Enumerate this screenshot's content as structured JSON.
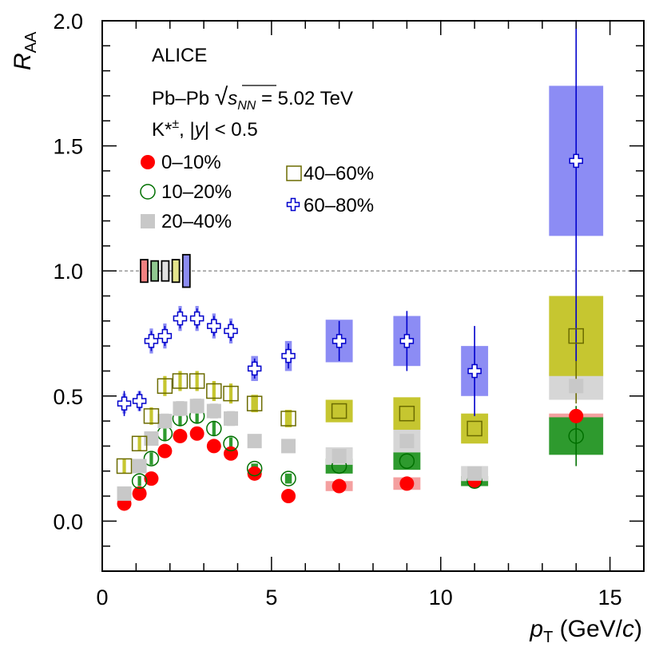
{
  "chart_data": {
    "type": "scatter",
    "title": "",
    "xlabel": "p_T (GeV/c)",
    "ylabel": "R_AA",
    "xlabel_parts": {
      "var": "p",
      "sub": "T",
      "unit_open": " (GeV/",
      "unit_var": "c",
      "unit_close": ")"
    },
    "ylabel_parts": {
      "var": "R",
      "sub": "AA"
    },
    "xlim": [
      0,
      16
    ],
    "ylim": [
      -0.2,
      2.0
    ],
    "x_ticks": [
      0,
      5,
      10,
      15
    ],
    "x_tick_labels": [
      "0",
      "5",
      "10",
      "15"
    ],
    "y_ticks": [
      0.0,
      0.5,
      1.0,
      1.5,
      2.0
    ],
    "y_tick_labels": [
      "0.0",
      "0.5",
      "1.0",
      "1.5",
      "2.0"
    ],
    "reference_line": 1.0,
    "annotations": {
      "experiment": "ALICE",
      "system_prefix": "Pb–Pb ",
      "sqrt_symbol": "√",
      "energy_var": "s",
      "energy_sub": "NN",
      "energy_value": " = 5.02 TeV",
      "particle_base": "K*",
      "particle_sup": "±",
      "rapidity_pre": ", |",
      "rapidity_var": "y",
      "rapidity_post": "| < 0.5"
    },
    "norm_boxes": [
      {
        "series": "0–10%",
        "low": 0.955,
        "high": 1.045,
        "color": "#f08080"
      },
      {
        "series": "10–20%",
        "low": 0.96,
        "high": 1.04,
        "color": "#90c890"
      },
      {
        "series": "20–40%",
        "low": 0.96,
        "high": 1.04,
        "color": "#e0e0e0"
      },
      {
        "series": "40–60%",
        "low": 0.955,
        "high": 1.045,
        "color": "#e4e48c"
      },
      {
        "series": "60–80%",
        "low": 0.935,
        "high": 1.065,
        "color": "#8c8cf0"
      }
    ],
    "series": [
      {
        "name": "0–10%",
        "marker": "filled-circle",
        "color": "#ff0000",
        "syst_color": "#f4a0a0",
        "points": [
          {
            "x": 0.65,
            "y": 0.07,
            "syst": 0.01,
            "syst_hw": 0.12
          },
          {
            "x": 1.1,
            "y": 0.11,
            "syst": 0.01,
            "syst_hw": 0.12
          },
          {
            "x": 1.45,
            "y": 0.17,
            "syst": 0.015,
            "syst_hw": 0.12
          },
          {
            "x": 1.85,
            "y": 0.28,
            "syst": 0.02,
            "syst_hw": 0.12
          },
          {
            "x": 2.3,
            "y": 0.34,
            "syst": 0.02,
            "syst_hw": 0.12
          },
          {
            "x": 2.8,
            "y": 0.35,
            "syst": 0.02,
            "syst_hw": 0.12
          },
          {
            "x": 3.3,
            "y": 0.3,
            "syst": 0.02,
            "syst_hw": 0.12
          },
          {
            "x": 3.8,
            "y": 0.27,
            "syst": 0.02,
            "syst_hw": 0.12
          },
          {
            "x": 4.5,
            "y": 0.19,
            "syst": 0.015,
            "syst_hw": 0.2
          },
          {
            "x": 5.5,
            "y": 0.1,
            "syst": 0.012,
            "syst_hw": 0.2
          },
          {
            "x": 7.0,
            "y": 0.14,
            "syst": 0.02,
            "syst_hw": 0.4
          },
          {
            "x": 9.0,
            "y": 0.15,
            "syst": 0.025,
            "syst_hw": 0.4
          },
          {
            "x": 11.0,
            "y": 0.16,
            "syst": 0.02,
            "syst_hw": 0.4
          },
          {
            "x": 14.0,
            "y": 0.42,
            "syst": 0.01,
            "syst_hw": 0.8
          }
        ]
      },
      {
        "name": "10–20%",
        "marker": "open-circle",
        "color": "#007000",
        "syst_color": "#2e9a2e",
        "points": [
          {
            "x": 1.1,
            "y": 0.16,
            "syst": 0.02,
            "syst_hw": 0.05
          },
          {
            "x": 1.45,
            "y": 0.25,
            "syst": 0.025,
            "syst_hw": 0.05
          },
          {
            "x": 1.85,
            "y": 0.35,
            "syst": 0.03,
            "syst_hw": 0.05
          },
          {
            "x": 2.3,
            "y": 0.41,
            "syst": 0.03,
            "syst_hw": 0.05
          },
          {
            "x": 2.8,
            "y": 0.42,
            "syst": 0.03,
            "syst_hw": 0.05
          },
          {
            "x": 3.3,
            "y": 0.37,
            "syst": 0.03,
            "syst_hw": 0.05
          },
          {
            "x": 3.8,
            "y": 0.31,
            "syst": 0.025,
            "syst_hw": 0.05
          },
          {
            "x": 4.5,
            "y": 0.21,
            "syst": 0.02,
            "syst_hw": 0.1
          },
          {
            "x": 5.5,
            "y": 0.17,
            "syst": 0.02,
            "syst_hw": 0.1
          },
          {
            "x": 7.0,
            "y": 0.22,
            "syst": 0.03,
            "syst_hw": 0.4
          },
          {
            "x": 9.0,
            "y": 0.24,
            "syst": 0.035,
            "syst_hw": 0.4
          },
          {
            "x": 11.0,
            "y": 0.16,
            "syst": 0.02,
            "syst_hw": 0.4
          },
          {
            "x": 14.0,
            "y": 0.34,
            "syst": 0.075,
            "syst_hw": 0.8,
            "stat": 0.12
          }
        ]
      },
      {
        "name": "20–40%",
        "marker": "filled-square",
        "color": "#c8c8c8",
        "syst_color": "#d6d6d6",
        "points": [
          {
            "x": 0.65,
            "y": 0.11,
            "syst": 0.015,
            "syst_hw": 0.12
          },
          {
            "x": 1.1,
            "y": 0.22,
            "syst": 0.02,
            "syst_hw": 0.12
          },
          {
            "x": 1.45,
            "y": 0.33,
            "syst": 0.025,
            "syst_hw": 0.12
          },
          {
            "x": 1.85,
            "y": 0.4,
            "syst": 0.03,
            "syst_hw": 0.12
          },
          {
            "x": 2.3,
            "y": 0.45,
            "syst": 0.03,
            "syst_hw": 0.12
          },
          {
            "x": 2.8,
            "y": 0.46,
            "syst": 0.03,
            "syst_hw": 0.12
          },
          {
            "x": 3.3,
            "y": 0.44,
            "syst": 0.03,
            "syst_hw": 0.12
          },
          {
            "x": 3.8,
            "y": 0.41,
            "syst": 0.03,
            "syst_hw": 0.12
          },
          {
            "x": 4.5,
            "y": 0.32,
            "syst": 0.025,
            "syst_hw": 0.2
          },
          {
            "x": 5.5,
            "y": 0.3,
            "syst": 0.025,
            "syst_hw": 0.2
          },
          {
            "x": 7.0,
            "y": 0.26,
            "syst": 0.035,
            "syst_hw": 0.4
          },
          {
            "x": 9.0,
            "y": 0.32,
            "syst": 0.045,
            "syst_hw": 0.4
          },
          {
            "x": 11.0,
            "y": 0.19,
            "syst": 0.03,
            "syst_hw": 0.4
          },
          {
            "x": 14.0,
            "y": 0.54,
            "syst": 0.055,
            "syst_hw": 0.8
          }
        ]
      },
      {
        "name": "40–60%",
        "marker": "open-square",
        "color": "#6b6b00",
        "syst_color": "#c6c630",
        "points": [
          {
            "x": 0.65,
            "y": 0.22,
            "syst": 0.03,
            "syst_hw": 0.05
          },
          {
            "x": 1.1,
            "y": 0.31,
            "syst": 0.03,
            "syst_hw": 0.05
          },
          {
            "x": 1.45,
            "y": 0.42,
            "syst": 0.035,
            "syst_hw": 0.05
          },
          {
            "x": 1.85,
            "y": 0.54,
            "syst": 0.04,
            "syst_hw": 0.05
          },
          {
            "x": 2.3,
            "y": 0.56,
            "syst": 0.04,
            "syst_hw": 0.05
          },
          {
            "x": 2.8,
            "y": 0.56,
            "syst": 0.04,
            "syst_hw": 0.05
          },
          {
            "x": 3.3,
            "y": 0.52,
            "syst": 0.04,
            "syst_hw": 0.05
          },
          {
            "x": 3.8,
            "y": 0.51,
            "syst": 0.04,
            "syst_hw": 0.05
          },
          {
            "x": 4.5,
            "y": 0.47,
            "syst": 0.035,
            "syst_hw": 0.1
          },
          {
            "x": 5.5,
            "y": 0.41,
            "syst": 0.035,
            "syst_hw": 0.1
          },
          {
            "x": 7.0,
            "y": 0.44,
            "syst": 0.045,
            "syst_hw": 0.4
          },
          {
            "x": 9.0,
            "y": 0.43,
            "syst": 0.065,
            "syst_hw": 0.4
          },
          {
            "x": 11.0,
            "y": 0.37,
            "syst": 0.06,
            "syst_hw": 0.4
          },
          {
            "x": 14.0,
            "y": 0.74,
            "syst": 0.16,
            "syst_hw": 0.8,
            "stat": 0.27
          }
        ]
      },
      {
        "name": "60–80%",
        "marker": "open-cross",
        "color": "#0000cc",
        "syst_color": "#8c8cf4",
        "points": [
          {
            "x": 0.65,
            "y": 0.47,
            "syst": 0.04,
            "syst_hw": 0.05,
            "stat": 0.05
          },
          {
            "x": 1.1,
            "y": 0.48,
            "syst": 0.04,
            "syst_hw": 0.05,
            "stat": 0.04
          },
          {
            "x": 1.45,
            "y": 0.72,
            "syst": 0.05,
            "syst_hw": 0.05,
            "stat": 0.04
          },
          {
            "x": 1.85,
            "y": 0.74,
            "syst": 0.05,
            "syst_hw": 0.05,
            "stat": 0.04
          },
          {
            "x": 2.3,
            "y": 0.81,
            "syst": 0.05,
            "syst_hw": 0.05,
            "stat": 0.04
          },
          {
            "x": 2.8,
            "y": 0.81,
            "syst": 0.05,
            "syst_hw": 0.05,
            "stat": 0.04
          },
          {
            "x": 3.3,
            "y": 0.78,
            "syst": 0.05,
            "syst_hw": 0.05,
            "stat": 0.04
          },
          {
            "x": 3.8,
            "y": 0.76,
            "syst": 0.05,
            "syst_hw": 0.05,
            "stat": 0.04
          },
          {
            "x": 4.5,
            "y": 0.61,
            "syst": 0.05,
            "syst_hw": 0.1,
            "stat": 0.04
          },
          {
            "x": 5.5,
            "y": 0.66,
            "syst": 0.06,
            "syst_hw": 0.1,
            "stat": 0.05
          },
          {
            "x": 7.0,
            "y": 0.72,
            "syst": 0.085,
            "syst_hw": 0.4,
            "stat": 0.08
          },
          {
            "x": 9.0,
            "y": 0.72,
            "syst": 0.1,
            "syst_hw": 0.4,
            "stat": 0.12
          },
          {
            "x": 11.0,
            "y": 0.6,
            "syst": 0.1,
            "syst_hw": 0.4,
            "stat": 0.18
          },
          {
            "x": 14.0,
            "y": 1.44,
            "syst": 0.3,
            "syst_hw": 0.8,
            "stat": 0.8
          }
        ]
      }
    ],
    "legend": {
      "placement": "upper-left, two columns",
      "column1": [
        "0–10%",
        "10–20%",
        "20–40%"
      ],
      "column2": [
        "40–60%",
        "60–80%"
      ]
    }
  }
}
